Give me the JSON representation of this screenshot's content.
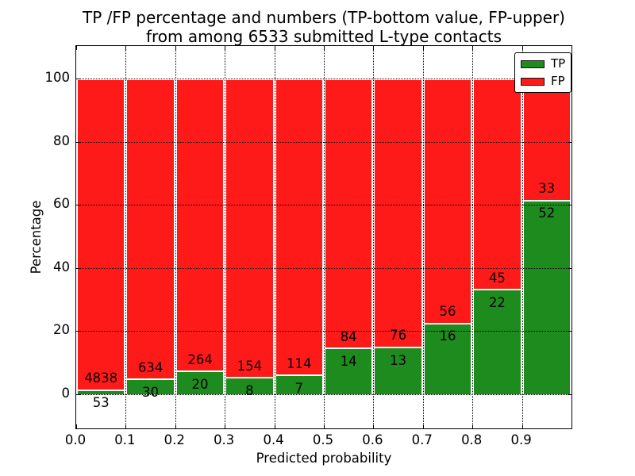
{
  "title": {
    "line1": "TP /FP percentage and numbers (TP-bottom value, FP-upper)",
    "line2": "from among 6533 submitted L-type contacts"
  },
  "chart_data": {
    "type": "bar",
    "stacked": true,
    "normalized_to_percent": true,
    "title": "TP /FP percentage and numbers (TP-bottom value, FP-upper) from among 6533 submitted L-type contacts",
    "total_contacts": 6533,
    "xlabel": "Predicted probability",
    "ylabel": "Percentage",
    "categories": [
      "0.0",
      "0.1",
      "0.2",
      "0.3",
      "0.4",
      "0.5",
      "0.6",
      "0.7",
      "0.8",
      "0.9"
    ],
    "bin_width": 0.1,
    "series": [
      {
        "name": "TP",
        "color": "#1e8b1e",
        "counts": [
          53,
          30,
          20,
          8,
          7,
          14,
          13,
          16,
          22,
          52
        ]
      },
      {
        "name": "FP",
        "color": "#ff1a1a",
        "counts": [
          4838,
          634,
          264,
          154,
          114,
          84,
          76,
          56,
          45,
          33
        ]
      }
    ],
    "x_ticks": [
      "0.0",
      "0.1",
      "0.2",
      "0.3",
      "0.4",
      "0.5",
      "0.6",
      "0.7",
      "0.8",
      "0.9"
    ],
    "y_ticks": [
      0,
      20,
      40,
      60,
      80,
      100
    ],
    "xlim": [
      0.0,
      1.0
    ],
    "ylim": [
      -10.8,
      110.3
    ],
    "grid": "dotted",
    "legend": {
      "position": "upper right",
      "entries": [
        {
          "label": "TP",
          "color": "#1e8b1e"
        },
        {
          "label": "FP",
          "color": "#ff1a1a"
        }
      ]
    }
  }
}
